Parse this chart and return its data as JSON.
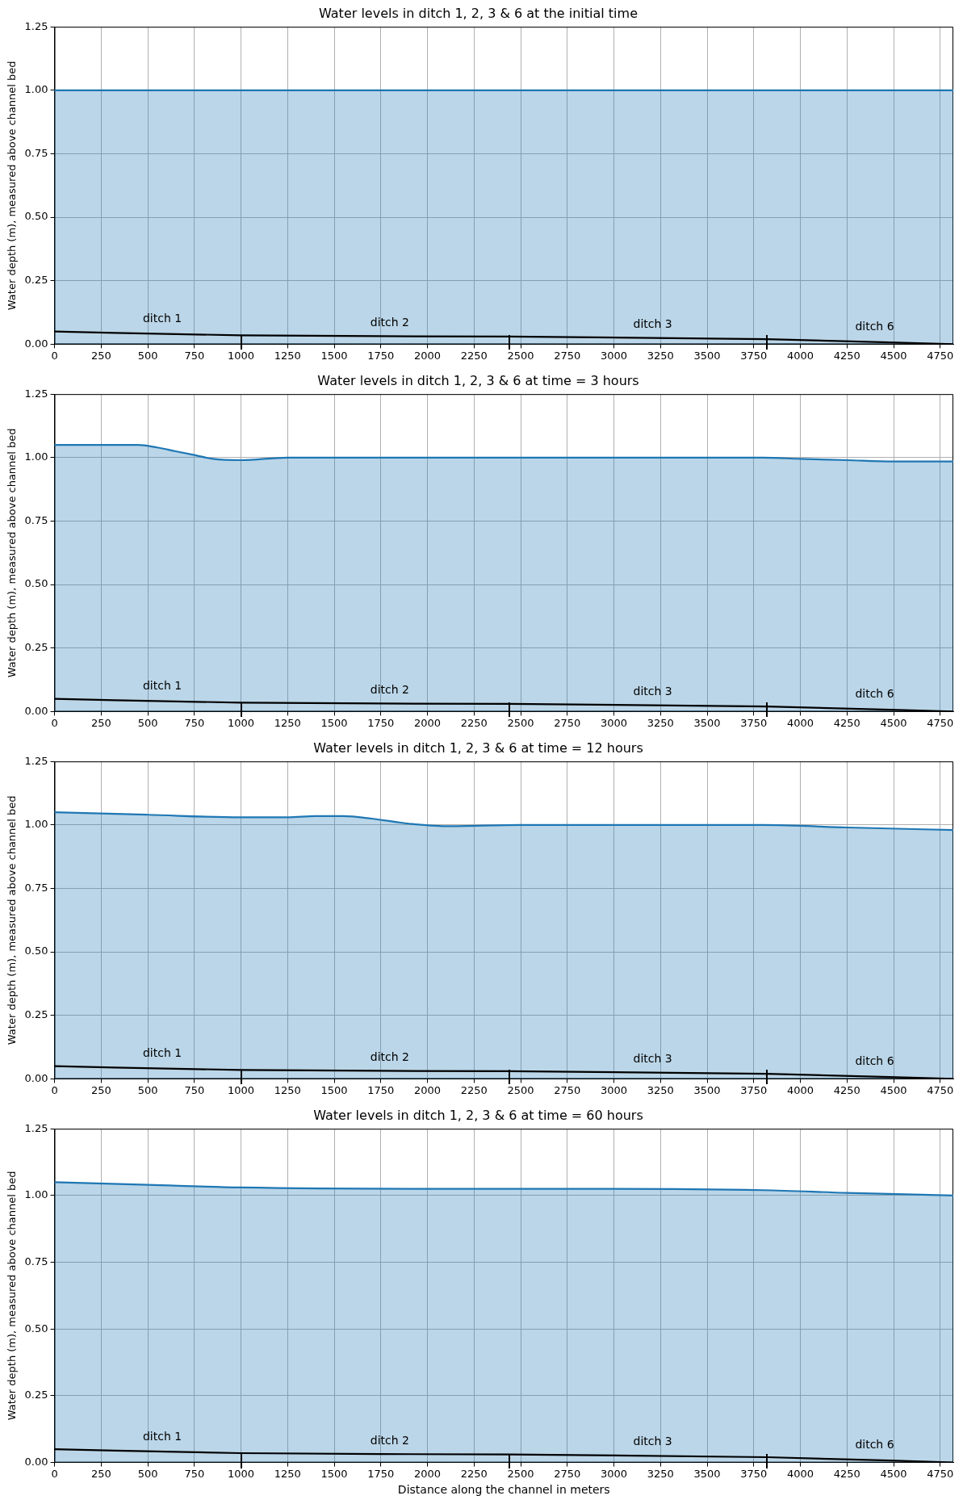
{
  "chart_data": [
    {
      "type": "line",
      "title": "Water levels in ditch 1, 2, 3 & 6 at the initial time",
      "ylabel": "Water depth (m), measured above channel bed",
      "xlim": [
        0,
        4820
      ],
      "xticks": [
        0,
        250,
        500,
        750,
        1000,
        1250,
        1500,
        1750,
        2000,
        2250,
        2500,
        2750,
        3000,
        3250,
        3500,
        3750,
        4000,
        4250,
        4500,
        4750
      ],
      "ylim": [
        0,
        1.25
      ],
      "yticks": [
        {
          "value": 0,
          "label": "0.00"
        },
        {
          "value": 0.25,
          "label": "0.25"
        },
        {
          "value": 0.5,
          "label": "0.50"
        },
        {
          "value": 0.75,
          "label": "0.75"
        },
        {
          "value": 1,
          "label": "1.00"
        },
        {
          "value": 1.25,
          "label": "1.25"
        }
      ],
      "grid": true,
      "series": [
        {
          "type": "area",
          "color": "#1f77b4",
          "x": [
            0,
            4820
          ],
          "values": [
            1,
            1
          ]
        },
        {
          "color": "#000000",
          "x": [
            0,
            1000,
            2440,
            3820,
            4820
          ],
          "values": [
            0.05,
            0.035,
            0.03,
            0.02,
            0
          ]
        }
      ],
      "annotations": [
        "ditch 1",
        "ditch 2",
        "ditch 3",
        "ditch 6"
      ]
    },
    {
      "type": "line",
      "title": "Water levels in ditch 1, 2, 3 & 6 at time = 3 hours",
      "ylabel": "Water depth (m), measured above channel bed",
      "xlim": [
        0,
        4820
      ],
      "xticks": [
        0,
        250,
        500,
        750,
        1000,
        1250,
        1500,
        1750,
        2000,
        2250,
        2500,
        2750,
        3000,
        3250,
        3500,
        3750,
        4000,
        4250,
        4500,
        4750
      ],
      "ylim": [
        0,
        1.25
      ],
      "yticks": [
        {
          "value": 0,
          "label": "0.00"
        },
        {
          "value": 0.25,
          "label": "0.25"
        },
        {
          "value": 0.5,
          "label": "0.50"
        },
        {
          "value": 0.75,
          "label": "0.75"
        },
        {
          "value": 1,
          "label": "1.00"
        },
        {
          "value": 1.25,
          "label": "1.25"
        }
      ],
      "grid": true,
      "series": [
        {
          "type": "area",
          "color": "#1f77b4",
          "x": [
            0,
            250,
            350,
            450,
            550,
            650,
            750,
            850,
            1000,
            1250,
            3800,
            4000,
            4250,
            4500,
            4820
          ],
          "values": [
            1.05,
            1.05,
            1.05,
            1.05,
            1.04,
            1.025,
            1.01,
            0.995,
            0.99,
            1,
            1,
            0.995,
            0.99,
            0.985,
            0.985
          ]
        },
        {
          "color": "#000000",
          "x": [
            0,
            1000,
            2440,
            3820,
            4820
          ],
          "values": [
            0.05,
            0.035,
            0.03,
            0.02,
            0
          ]
        }
      ],
      "annotations": [
        "ditch 1",
        "ditch 2",
        "ditch 3",
        "ditch 6"
      ]
    },
    {
      "type": "line",
      "title": "Water levels in ditch 1, 2, 3 & 6 at time = 12 hours",
      "ylabel": "Water depth (m), measured above channel bed",
      "xlim": [
        0,
        4820
      ],
      "xticks": [
        0,
        250,
        500,
        750,
        1000,
        1250,
        1500,
        1750,
        2000,
        2250,
        2500,
        2750,
        3000,
        3250,
        3500,
        3750,
        4000,
        4250,
        4500,
        4750
      ],
      "ylim": [
        0,
        1.25
      ],
      "yticks": [
        {
          "value": 0,
          "label": "0.00"
        },
        {
          "value": 0.25,
          "label": "0.25"
        },
        {
          "value": 0.5,
          "label": "0.50"
        },
        {
          "value": 0.75,
          "label": "0.75"
        },
        {
          "value": 1,
          "label": "1.00"
        },
        {
          "value": 1.25,
          "label": "1.25"
        }
      ],
      "grid": true,
      "series": [
        {
          "type": "area",
          "color": "#1f77b4",
          "x": [
            0,
            500,
            1000,
            1250,
            1400,
            1550,
            1700,
            1900,
            2100,
            2500,
            3800,
            4250,
            4820
          ],
          "values": [
            1.05,
            1.04,
            1.03,
            1.03,
            1.035,
            1.035,
            1.025,
            1.005,
            0.995,
            1,
            1,
            0.99,
            0.98
          ]
        },
        {
          "color": "#000000",
          "x": [
            0,
            1000,
            2440,
            3820,
            4820
          ],
          "values": [
            0.05,
            0.035,
            0.03,
            0.02,
            0
          ]
        }
      ],
      "annotations": [
        "ditch 1",
        "ditch 2",
        "ditch 3",
        "ditch 6"
      ]
    },
    {
      "type": "line",
      "title": "Water levels in ditch 1, 2, 3 & 6 at time = 60 hours",
      "xlabel": "Distance along the channel in meters",
      "ylabel": "Water depth (m), measured above channel bed",
      "xlim": [
        0,
        4820
      ],
      "xticks": [
        0,
        250,
        500,
        750,
        1000,
        1250,
        1500,
        1750,
        2000,
        2250,
        2500,
        2750,
        3000,
        3250,
        3500,
        3750,
        4000,
        4250,
        4500,
        4750
      ],
      "ylim": [
        0,
        1.25
      ],
      "yticks": [
        {
          "value": 0,
          "label": "0.00"
        },
        {
          "value": 0.25,
          "label": "0.25"
        },
        {
          "value": 0.5,
          "label": "0.50"
        },
        {
          "value": 0.75,
          "label": "0.75"
        },
        {
          "value": 1,
          "label": "1.00"
        },
        {
          "value": 1.25,
          "label": "1.25"
        }
      ],
      "grid": true,
      "series": [
        {
          "type": "area",
          "color": "#1f77b4",
          "x": [
            0,
            500,
            1000,
            2000,
            3000,
            3800,
            4250,
            4820
          ],
          "values": [
            1.05,
            1.04,
            1.03,
            1.025,
            1.025,
            1.02,
            1.01,
            1
          ]
        },
        {
          "color": "#000000",
          "x": [
            0,
            1000,
            2440,
            3820,
            4820
          ],
          "values": [
            0.05,
            0.035,
            0.03,
            0.02,
            0
          ]
        }
      ],
      "annotations": [
        "ditch 1",
        "ditch 2",
        "ditch 3",
        "ditch 6"
      ]
    }
  ]
}
